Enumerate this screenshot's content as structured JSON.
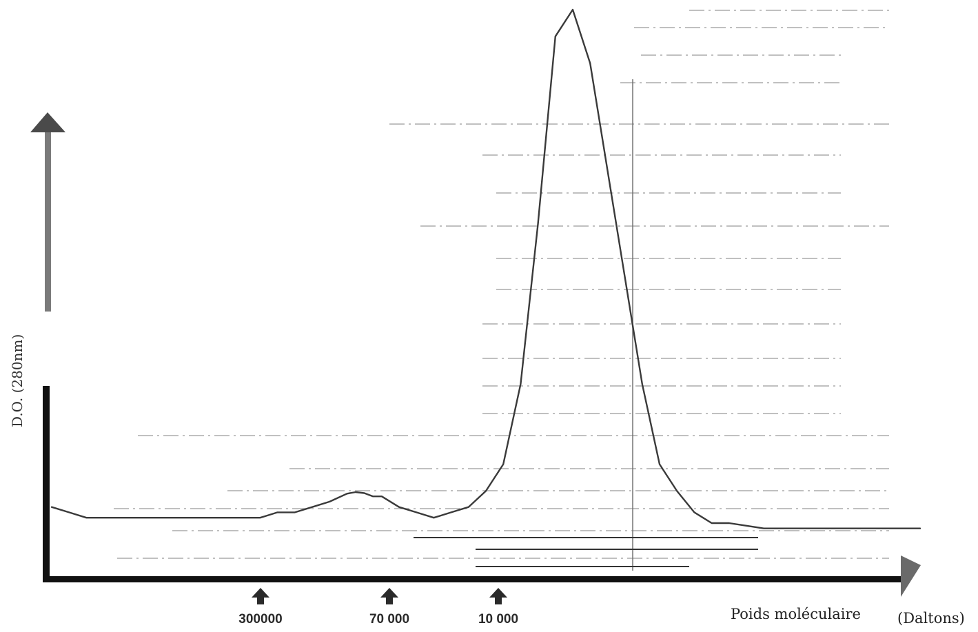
{
  "chart_data": {
    "type": "line",
    "title": "",
    "ylabel": "D.O. (280nm)",
    "xlabel": "Poids moléculaire",
    "xunit": "(Daltons)",
    "x_markers": [
      {
        "label": "300000"
      },
      {
        "label": "70 000"
      },
      {
        "label": "10 000"
      }
    ],
    "grid": true,
    "legend": "none",
    "series": [
      {
        "x": [
          0,
          2,
          4,
          6,
          8,
          10,
          12,
          14,
          16,
          18,
          20,
          22,
          24,
          26,
          28,
          30,
          32,
          34,
          35,
          36,
          37,
          38,
          40,
          42,
          44,
          46,
          48,
          50,
          52,
          54,
          56,
          58,
          60,
          62,
          64,
          66,
          68,
          70,
          72,
          74,
          76,
          78,
          80,
          82,
          84,
          86,
          88,
          90,
          92,
          94,
          96,
          98,
          100
        ],
        "y": [
          0.07,
          0.06,
          0.05,
          0.05,
          0.05,
          0.05,
          0.05,
          0.05,
          0.05,
          0.05,
          0.05,
          0.05,
          0.05,
          0.06,
          0.06,
          0.07,
          0.08,
          0.095,
          0.098,
          0.096,
          0.09,
          0.09,
          0.07,
          0.06,
          0.05,
          0.06,
          0.07,
          0.1,
          0.15,
          0.3,
          0.6,
          0.95,
          1.0,
          0.9,
          0.7,
          0.5,
          0.3,
          0.15,
          0.1,
          0.06,
          0.04,
          0.04,
          0.035,
          0.03,
          0.03,
          0.03,
          0.03,
          0.03,
          0.03,
          0.03,
          0.03,
          0.03,
          0.03
        ]
      }
    ]
  }
}
